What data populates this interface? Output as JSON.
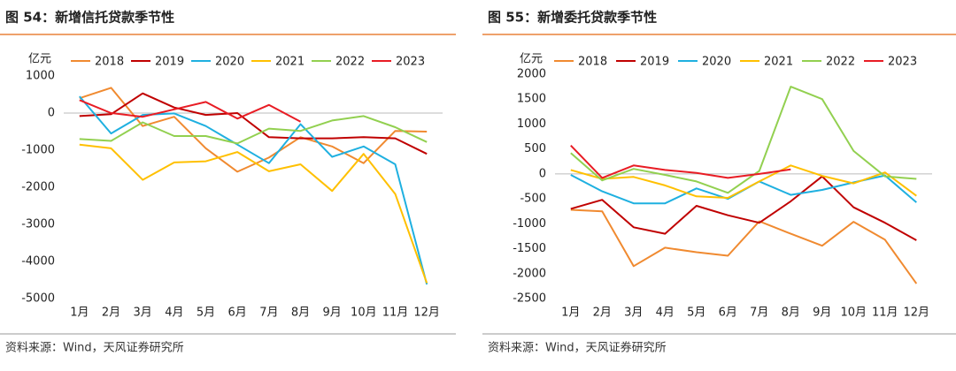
{
  "chart_data": [
    {
      "type": "line",
      "title": "图 54：新增信托贷款季节性",
      "y_label": "亿元",
      "source": "资料来源：Wind，天风证券研究所",
      "categories": [
        "1月",
        "2月",
        "3月",
        "4月",
        "5月",
        "6月",
        "7月",
        "8月",
        "9月",
        "10月",
        "11月",
        "12月"
      ],
      "ylim": [
        -5000,
        1000
      ],
      "yticks": [
        -5000,
        -4000,
        -3000,
        -2000,
        -1000,
        0,
        1000
      ],
      "series": [
        {
          "name": "2018",
          "color": "#f08a30",
          "values": [
            400,
            680,
            -350,
            -100,
            -950,
            -1580,
            -1200,
            -650,
            -900,
            -1350,
            -480,
            -500
          ]
        },
        {
          "name": "2019",
          "color": "#c00000",
          "values": [
            -80,
            -30,
            530,
            150,
            -50,
            0,
            -650,
            -680,
            -680,
            -650,
            -680,
            -1100
          ]
        },
        {
          "name": "2020",
          "color": "#1fb0e0",
          "values": [
            450,
            -550,
            -50,
            -10,
            -350,
            -850,
            -1350,
            -300,
            -1180,
            -900,
            -1380,
            -4620
          ]
        },
        {
          "name": "2021",
          "color": "#ffc000",
          "values": [
            -850,
            -950,
            -1800,
            -1330,
            -1300,
            -1050,
            -1570,
            -1380,
            -2100,
            -1100,
            -2180,
            -4580
          ]
        },
        {
          "name": "2022",
          "color": "#92d050",
          "values": [
            -700,
            -750,
            -250,
            -620,
            -620,
            -820,
            -420,
            -480,
            -200,
            -80,
            -380,
            -780
          ]
        },
        {
          "name": "2023",
          "color": "#e81c24",
          "values": [
            350,
            0,
            -100,
            100,
            300,
            -150,
            220,
            -230,
            null,
            null,
            null,
            null
          ]
        }
      ]
    },
    {
      "type": "line",
      "title": "图 55：新增委托贷款季节性",
      "y_label": "亿元",
      "source": "资料来源：Wind，天风证券研究所",
      "categories": [
        "1月",
        "2月",
        "3月",
        "4月",
        "5月",
        "6月",
        "7月",
        "8月",
        "9月",
        "10月",
        "11月",
        "12月"
      ],
      "ylim": [
        -2500,
        2000
      ],
      "yticks": [
        -2500,
        -2000,
        -1500,
        -1000,
        -500,
        0,
        500,
        1000,
        1500,
        2000
      ],
      "series": [
        {
          "name": "2018",
          "color": "#f08a30",
          "values": [
            -720,
            -750,
            -1850,
            -1480,
            -1570,
            -1640,
            -950,
            -1200,
            -1440,
            -960,
            -1320,
            -2200
          ]
        },
        {
          "name": "2019",
          "color": "#c00000",
          "values": [
            -700,
            -520,
            -1070,
            -1200,
            -640,
            -830,
            -980,
            -550,
            -50,
            -670,
            -980,
            -1330
          ]
        },
        {
          "name": "2020",
          "color": "#1fb0e0",
          "values": [
            -20,
            -350,
            -590,
            -590,
            -290,
            -500,
            -150,
            -420,
            -320,
            -170,
            -30,
            -570
          ]
        },
        {
          "name": "2021",
          "color": "#ffc000",
          "values": [
            80,
            -100,
            -60,
            -230,
            -450,
            -480,
            -150,
            170,
            -40,
            -190,
            30,
            -440
          ]
        },
        {
          "name": "2022",
          "color": "#92d050",
          "values": [
            420,
            -130,
            100,
            -20,
            -150,
            -380,
            60,
            1750,
            1500,
            460,
            -50,
            -100
          ]
        },
        {
          "name": "2023",
          "color": "#e81c24",
          "values": [
            570,
            -80,
            170,
            80,
            20,
            -80,
            0,
            90,
            null,
            null,
            null,
            null
          ]
        }
      ]
    }
  ]
}
